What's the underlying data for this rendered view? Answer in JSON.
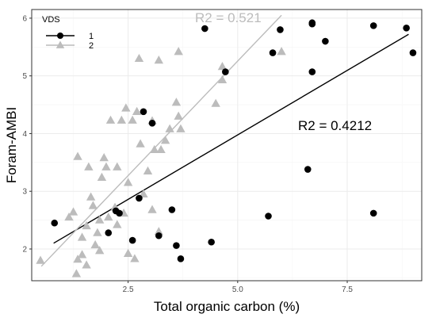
{
  "chart_data": {
    "type": "scatter",
    "title": "",
    "xlabel": "Total organic carbon (%)",
    "ylabel": "Foram-AMBI",
    "xlim": [
      0.3,
      9.2
    ],
    "ylim": [
      1.45,
      6.15
    ],
    "x_ticks": [
      2.5,
      5.0,
      7.5
    ],
    "x_tick_labels": [
      "2.5",
      "5.0",
      "7.5"
    ],
    "y_ticks": [
      2,
      3,
      4,
      5,
      6
    ],
    "y_tick_labels": [
      "2",
      "3",
      "4",
      "5",
      "6"
    ],
    "grid": true,
    "legend": {
      "title": "VDS",
      "position": "top-left",
      "entries": [
        "1",
        "2"
      ]
    },
    "series": [
      {
        "name": "1",
        "marker": "circle",
        "color": "#000000",
        "points": [
          [
            0.82,
            2.45
          ],
          [
            2.05,
            2.28
          ],
          [
            2.22,
            2.66
          ],
          [
            2.3,
            2.62
          ],
          [
            2.6,
            2.15
          ],
          [
            2.75,
            2.88
          ],
          [
            2.85,
            4.38
          ],
          [
            3.05,
            4.18
          ],
          [
            3.2,
            2.23
          ],
          [
            3.5,
            2.68
          ],
          [
            3.6,
            2.06
          ],
          [
            3.7,
            1.83
          ],
          [
            4.25,
            5.82
          ],
          [
            4.4,
            2.12
          ],
          [
            4.72,
            5.07
          ],
          [
            5.7,
            2.57
          ],
          [
            5.8,
            5.4
          ],
          [
            5.97,
            5.8
          ],
          [
            6.6,
            3.38
          ],
          [
            6.7,
            5.9
          ],
          [
            6.7,
            5.92
          ],
          [
            6.7,
            5.07
          ],
          [
            7.0,
            5.6
          ],
          [
            8.1,
            5.87
          ],
          [
            8.1,
            2.62
          ],
          [
            8.85,
            5.83
          ],
          [
            9.0,
            5.4
          ]
        ],
        "fit": {
          "x": [
            0.8,
            8.9
          ],
          "y": [
            2.1,
            5.72
          ]
        },
        "r2_label": "R2 = 0.4212"
      },
      {
        "name": "2",
        "marker": "triangle",
        "color": "#bcbcbc",
        "points": [
          [
            0.5,
            1.8
          ],
          [
            1.15,
            2.55
          ],
          [
            1.25,
            2.64
          ],
          [
            1.32,
            1.57
          ],
          [
            1.35,
            3.6
          ],
          [
            1.35,
            1.82
          ],
          [
            1.45,
            2.2
          ],
          [
            1.45,
            1.9
          ],
          [
            1.55,
            2.4
          ],
          [
            1.55,
            1.72
          ],
          [
            1.6,
            3.42
          ],
          [
            1.65,
            2.9
          ],
          [
            1.7,
            2.75
          ],
          [
            1.75,
            2.07
          ],
          [
            1.8,
            2.28
          ],
          [
            1.85,
            2.5
          ],
          [
            1.85,
            1.97
          ],
          [
            1.9,
            3.24
          ],
          [
            1.95,
            3.58
          ],
          [
            2.0,
            3.42
          ],
          [
            2.05,
            2.55
          ],
          [
            2.1,
            4.23
          ],
          [
            2.2,
            2.72
          ],
          [
            2.25,
            3.42
          ],
          [
            2.25,
            2.42
          ],
          [
            2.35,
            4.23
          ],
          [
            2.4,
            2.62
          ],
          [
            2.45,
            4.44
          ],
          [
            2.5,
            1.92
          ],
          [
            2.5,
            3.15
          ],
          [
            2.6,
            4.23
          ],
          [
            2.65,
            1.83
          ],
          [
            2.7,
            4.38
          ],
          [
            2.75,
            5.3
          ],
          [
            2.78,
            3.82
          ],
          [
            2.85,
            2.95
          ],
          [
            2.95,
            3.35
          ],
          [
            3.05,
            2.68
          ],
          [
            3.05,
            4.22
          ],
          [
            3.1,
            3.72
          ],
          [
            3.2,
            5.27
          ],
          [
            3.2,
            2.3
          ],
          [
            3.25,
            3.72
          ],
          [
            3.35,
            3.88
          ],
          [
            3.45,
            4.08
          ],
          [
            3.6,
            4.54
          ],
          [
            3.65,
            5.42
          ],
          [
            3.65,
            4.3
          ],
          [
            3.7,
            4.08
          ],
          [
            4.5,
            4.52
          ],
          [
            4.65,
            5.16
          ],
          [
            4.65,
            4.93
          ],
          [
            6.0,
            5.42
          ]
        ],
        "fit": {
          "x": [
            0.52,
            6.0
          ],
          "y": [
            1.7,
            6.05
          ]
        },
        "r2_label": "R2 = 0.521"
      }
    ]
  },
  "colors": {
    "panel_border": "#333333",
    "grid_major": "#ebebeb",
    "grid_minor": "#f5f5f5",
    "series1": "#000000",
    "series2": "#bcbcbc"
  }
}
